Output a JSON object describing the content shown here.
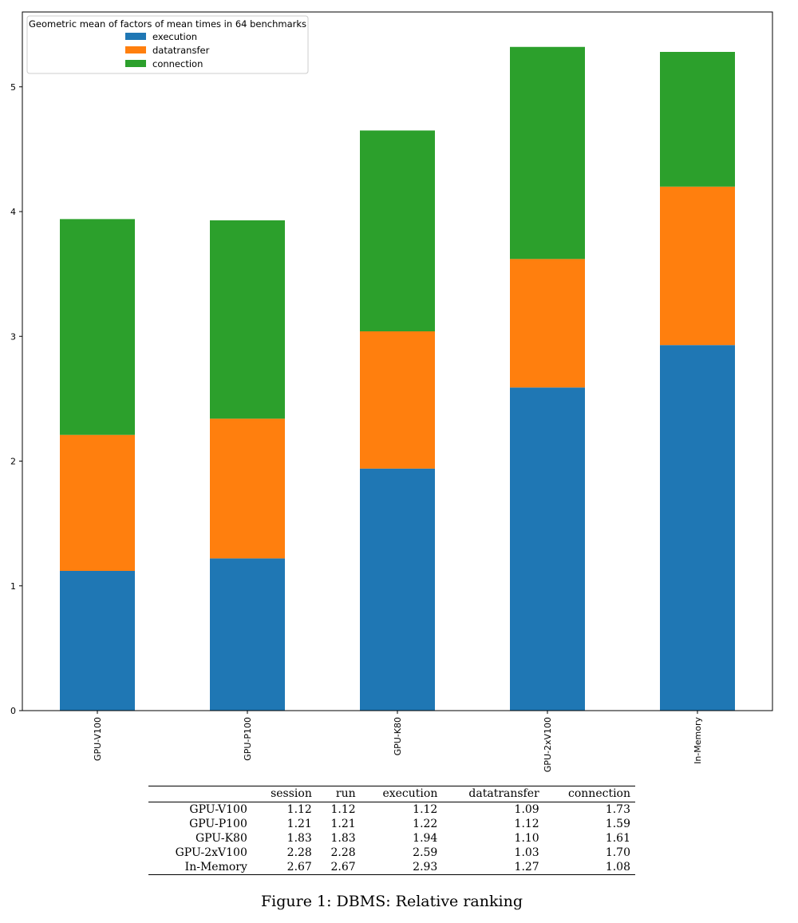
{
  "chart_data": {
    "type": "bar",
    "stacked": true,
    "categories": [
      "GPU-V100",
      "GPU-P100",
      "GPU-K80",
      "GPU-2xV100",
      "In-Memory"
    ],
    "series": [
      {
        "name": "execution",
        "color": "#1f77b4",
        "values": [
          1.12,
          1.22,
          1.94,
          2.59,
          2.93
        ]
      },
      {
        "name": "datatransfer",
        "color": "#ff7f0e",
        "values": [
          1.09,
          1.12,
          1.1,
          1.03,
          1.27
        ]
      },
      {
        "name": "connection",
        "color": "#2ca02c",
        "values": [
          1.73,
          1.59,
          1.61,
          1.7,
          1.08
        ]
      }
    ],
    "ylim": [
      0,
      5.6
    ],
    "yticks": [
      0,
      1,
      2,
      3,
      4,
      5
    ],
    "legend_title": "Geometric mean of factors of mean times in 64 benchmarks",
    "legend_position": "top-left",
    "xlabel": "",
    "ylabel": ""
  },
  "table": {
    "columns": [
      "",
      "session",
      "run",
      "execution",
      "datatransfer",
      "connection"
    ],
    "rows": [
      [
        "GPU-V100",
        "1.12",
        "1.12",
        "1.12",
        "1.09",
        "1.73"
      ],
      [
        "GPU-P100",
        "1.21",
        "1.21",
        "1.22",
        "1.12",
        "1.59"
      ],
      [
        "GPU-K80",
        "1.83",
        "1.83",
        "1.94",
        "1.10",
        "1.61"
      ],
      [
        "GPU-2xV100",
        "2.28",
        "2.28",
        "2.59",
        "1.03",
        "1.70"
      ],
      [
        "In-Memory",
        "2.67",
        "2.67",
        "2.93",
        "1.27",
        "1.08"
      ]
    ]
  },
  "caption": "Figure 1: DBMS: Relative ranking"
}
